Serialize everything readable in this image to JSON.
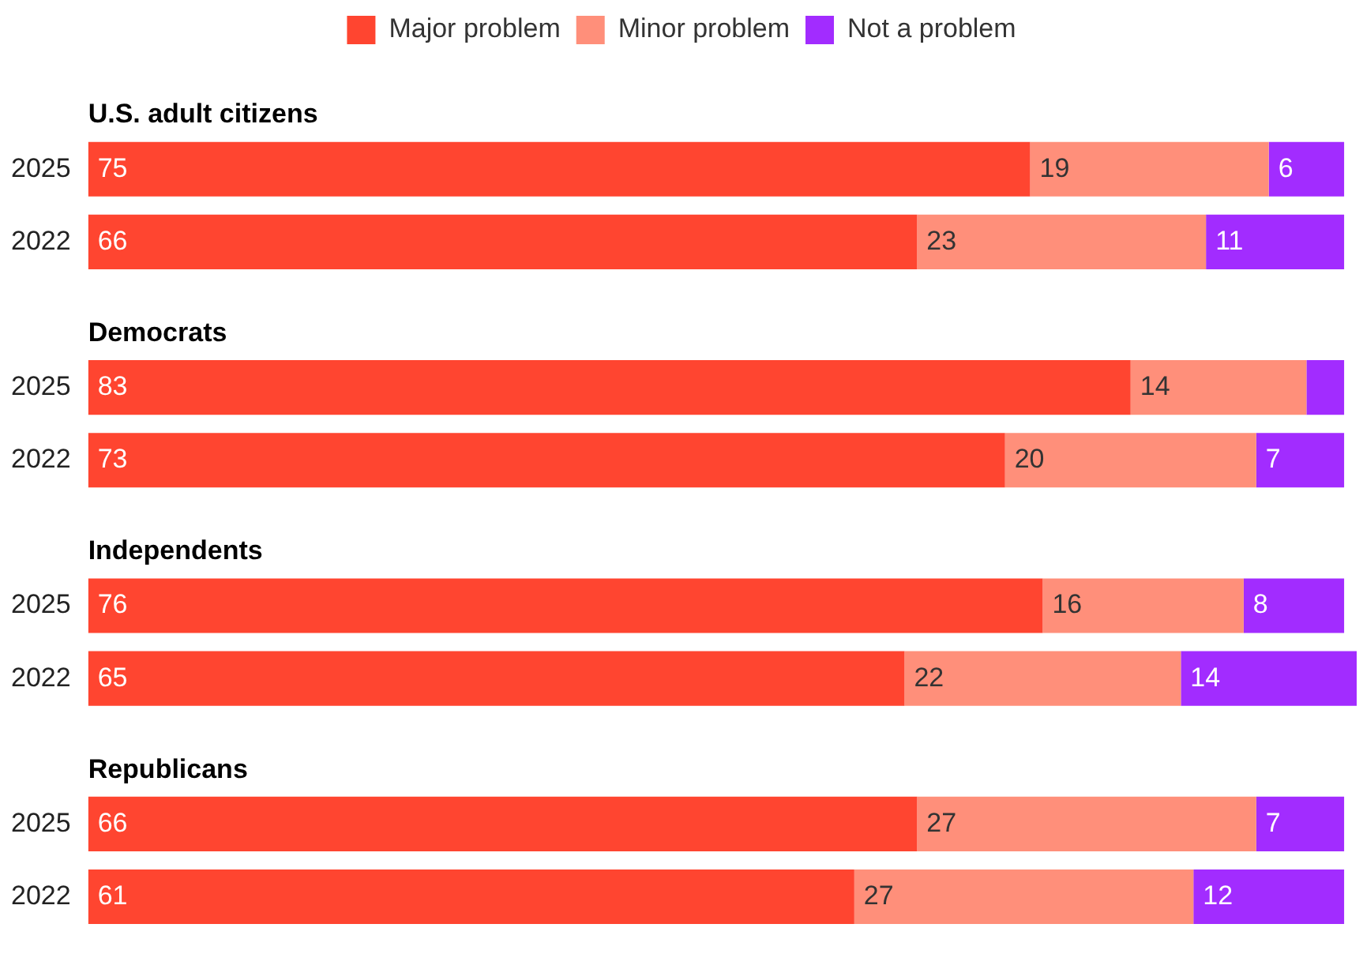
{
  "chart_data": {
    "type": "bar",
    "orientation": "horizontal",
    "stacked": true,
    "categories": [
      null,
      "2025",
      "2022",
      null,
      "2025",
      "2022",
      null,
      "2025",
      "2022",
      null,
      "2025",
      "2022"
    ],
    "annotations": [
      "U.S. adult citizens",
      "Democrats",
      "Independents",
      "Republicans"
    ],
    "series": [
      {
        "name": "Major problem",
        "color": "#ff4530",
        "values": [
          null,
          75,
          66,
          null,
          83,
          73,
          null,
          76,
          65,
          null,
          66,
          61
        ],
        "value_labels": [
          null,
          "75",
          "66",
          null,
          "83",
          "73",
          null,
          "76",
          "65",
          null,
          "66",
          "61"
        ]
      },
      {
        "name": "Minor problem",
        "color": "#ff8f7a",
        "values": [
          null,
          19,
          23,
          null,
          14,
          20,
          null,
          16,
          22,
          null,
          27,
          27
        ],
        "value_labels": [
          null,
          "19",
          "23",
          null,
          "14",
          "20",
          null,
          "16",
          "22",
          null,
          "27",
          "27"
        ]
      },
      {
        "name": "Not a problem",
        "color": "#a22cff",
        "values": [
          null,
          6,
          11,
          null,
          3,
          7,
          null,
          8,
          14,
          null,
          7,
          12
        ],
        "value_labels": [
          null,
          "6",
          "11",
          null,
          null,
          "7",
          null,
          "8",
          "14",
          null,
          "7",
          "12"
        ]
      }
    ],
    "xlim": [
      0,
      101
    ],
    "tick_labels": "y",
    "grid": false,
    "legend": "top"
  }
}
